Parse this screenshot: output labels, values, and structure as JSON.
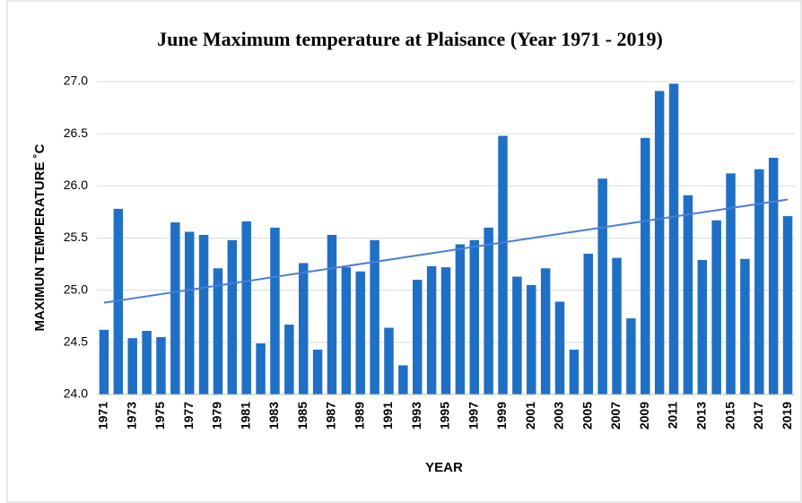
{
  "chart_data": {
    "type": "bar",
    "title": "June Maximum temperature  at Plaisance (Year 1971 - 2019)",
    "x_label": "YEAR",
    "y_label": "MAXIMUN TEMPERATURE ˚C",
    "categories": [
      "1971",
      null,
      "1973",
      null,
      "1975",
      null,
      "1977",
      null,
      "1979",
      null,
      "1981",
      null,
      "1983",
      null,
      "1985",
      null,
      "1987",
      null,
      "1989",
      null,
      "1991",
      null,
      "1993",
      null,
      "1995",
      null,
      "1997",
      null,
      "1999",
      null,
      "2001",
      null,
      "2003",
      null,
      "2005",
      null,
      "2007",
      null,
      "2009",
      null,
      "2011",
      null,
      "2013",
      null,
      "2015",
      null,
      "2017",
      null,
      "2019"
    ],
    "values": [
      24.62,
      25.78,
      24.54,
      24.61,
      24.55,
      25.65,
      25.56,
      25.53,
      25.21,
      25.48,
      25.66,
      24.49,
      25.6,
      24.67,
      25.26,
      24.43,
      25.53,
      25.22,
      25.18,
      25.48,
      24.64,
      24.28,
      25.1,
      25.23,
      25.22,
      25.44,
      25.48,
      25.6,
      26.48,
      25.13,
      25.05,
      25.21,
      24.89,
      24.43,
      25.35,
      26.07,
      25.31,
      24.73,
      26.46,
      26.91,
      26.98,
      25.91,
      25.29,
      25.67,
      26.12,
      25.3,
      26.16,
      26.27,
      25.71
    ],
    "color": "#1f6fc5",
    "trendline": {
      "color": "#4a7fd4",
      "values": [
        24.88,
        25.87
      ]
    },
    "ylim": [
      24,
      27
    ],
    "yticks": [
      {
        "value": 24,
        "label": "24.0"
      },
      24.5,
      {
        "value": 25,
        "label": "25.0"
      },
      25.5,
      {
        "value": 26,
        "label": "26.0"
      },
      26.5,
      {
        "value": 27,
        "label": "27.0"
      }
    ],
    "grid": true
  }
}
